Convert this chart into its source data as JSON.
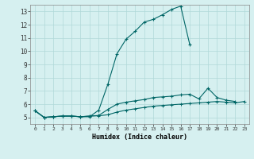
{
  "xlabel": "Humidex (Indice chaleur)",
  "background_color": "#d6f0f0",
  "line_color": "#006666",
  "grid_color": "#b0d8d8",
  "xlim": [
    -0.5,
    23.5
  ],
  "ylim": [
    4.5,
    13.5
  ],
  "yticks": [
    5,
    6,
    7,
    8,
    9,
    10,
    11,
    12,
    13
  ],
  "xticks": [
    0,
    1,
    2,
    3,
    4,
    5,
    6,
    7,
    8,
    9,
    10,
    11,
    12,
    13,
    14,
    15,
    16,
    17,
    18,
    19,
    20,
    21,
    22,
    23
  ],
  "series1_x": [
    0,
    1,
    2,
    3,
    4,
    5,
    6,
    7,
    8,
    9,
    10,
    11,
    12,
    13,
    14,
    15,
    16,
    17
  ],
  "series1_y": [
    5.5,
    5.0,
    5.05,
    5.1,
    5.1,
    5.05,
    5.05,
    5.55,
    7.5,
    9.8,
    10.9,
    11.5,
    12.2,
    12.4,
    12.75,
    13.15,
    13.4,
    10.5
  ],
  "series2_x": [
    0,
    1,
    2,
    3,
    4,
    5,
    6,
    7,
    8,
    9,
    10,
    11,
    12,
    13,
    14,
    15,
    16,
    17,
    18,
    19,
    20,
    21,
    22
  ],
  "series2_y": [
    5.5,
    5.0,
    5.05,
    5.1,
    5.1,
    5.05,
    5.1,
    5.15,
    5.6,
    6.0,
    6.15,
    6.25,
    6.35,
    6.5,
    6.55,
    6.6,
    6.7,
    6.75,
    6.4,
    7.2,
    6.5,
    6.3,
    6.2
  ],
  "series3_x": [
    0,
    1,
    2,
    3,
    4,
    5,
    6,
    7,
    8,
    9,
    10,
    11,
    12,
    13,
    14,
    15,
    16,
    17,
    18,
    19,
    20,
    21,
    22,
    23
  ],
  "series3_y": [
    5.5,
    5.0,
    5.05,
    5.1,
    5.1,
    5.05,
    5.1,
    5.12,
    5.2,
    5.4,
    5.55,
    5.65,
    5.75,
    5.85,
    5.9,
    5.95,
    6.0,
    6.05,
    6.1,
    6.15,
    6.2,
    6.15,
    6.1,
    6.2
  ]
}
